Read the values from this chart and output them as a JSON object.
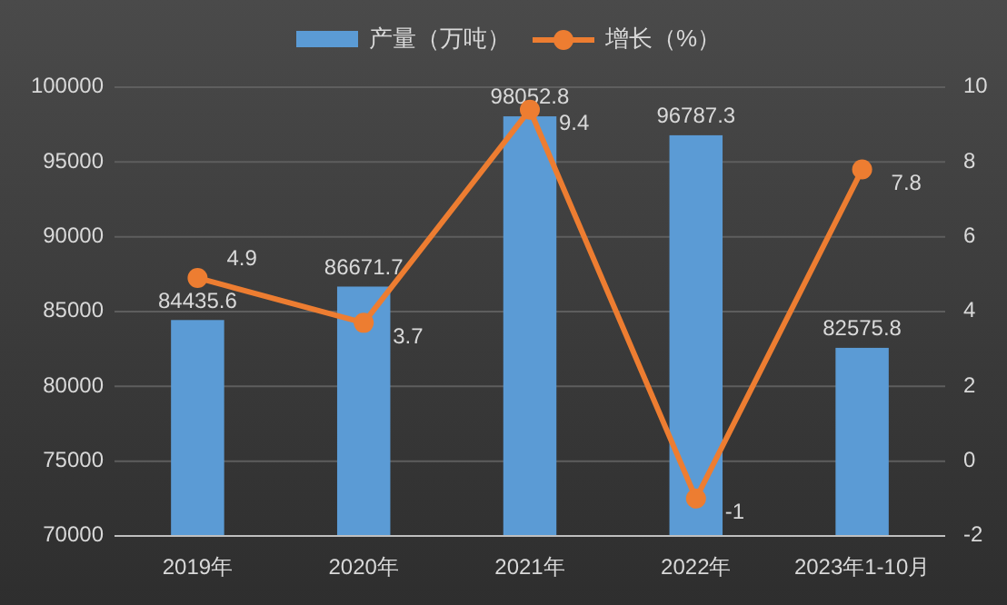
{
  "chart_data": {
    "type": "bar",
    "categories": [
      "2019年",
      "2020年",
      "2021年",
      "2022年",
      "2023年1-10月"
    ],
    "series": [
      {
        "name": "产量（万吨）",
        "color": "#5b9bd5",
        "values": [
          84435.6,
          86671.7,
          98052.8,
          96787.3,
          82575.8
        ]
      },
      {
        "name": "增长（%）",
        "type": "line",
        "axis": "y2",
        "color": "#ed7d31",
        "marker": "circle",
        "values": [
          4.9,
          3.7,
          9.4,
          -1,
          7.8
        ]
      }
    ],
    "ylim": [
      70000,
      100000
    ],
    "yticks": [
      70000,
      75000,
      80000,
      85000,
      90000,
      95000,
      100000
    ],
    "y2lim": [
      -2,
      10
    ],
    "y2ticks": [
      -2,
      0,
      2,
      4,
      6,
      8,
      10
    ],
    "grid": "y",
    "legend": "top",
    "data_labels": true
  }
}
